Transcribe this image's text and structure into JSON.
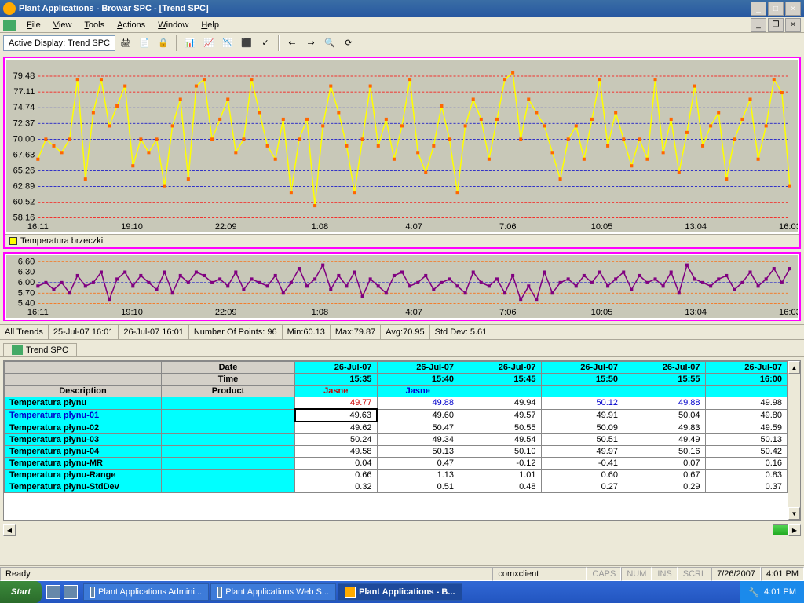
{
  "window": {
    "title": "Plant Applications - Browar SPC - [Trend SPC]"
  },
  "menu": {
    "file": "File",
    "view": "View",
    "tools": "Tools",
    "actions": "Actions",
    "window": "Window",
    "help": "Help"
  },
  "toolbar": {
    "active_display": "Active Display: Trend SPC"
  },
  "chart1": {
    "type": "line",
    "series_color": "#ffff00",
    "marker_color": "#ff6600",
    "grid_red": "#ff0000",
    "grid_blue": "#0000cc",
    "bg": "#c8c8b8",
    "ylim": [
      58.16,
      81
    ],
    "yticks": [
      58.16,
      60.52,
      62.89,
      65.26,
      67.63,
      70.0,
      72.37,
      74.74,
      77.11,
      79.48
    ],
    "xticks": [
      "16:11",
      "19:10",
      "22:09",
      "1:08",
      "4:07",
      "7:06",
      "10:05",
      "13:04",
      "16:03"
    ],
    "legend": "Temperatura brzeczki",
    "values": [
      67,
      70,
      69,
      68,
      70,
      79,
      64,
      74,
      79,
      72,
      75,
      78,
      66,
      70,
      68,
      70,
      63,
      72,
      76,
      64,
      78,
      79,
      70,
      73,
      76,
      68,
      70,
      79,
      74,
      69,
      67,
      73,
      62,
      70,
      73,
      60,
      72,
      78,
      74,
      69,
      62,
      70,
      78,
      69,
      73,
      67,
      72,
      79,
      68,
      65,
      69,
      75,
      70,
      62,
      72,
      76,
      73,
      67,
      73,
      79,
      80,
      70,
      76,
      74,
      72,
      68,
      64,
      70,
      72,
      67,
      73,
      79,
      69,
      74,
      70,
      66,
      70,
      67,
      79,
      68,
      73,
      65,
      71,
      78,
      69,
      72,
      74,
      64,
      70,
      73,
      76,
      67,
      72,
      79,
      77,
      63
    ]
  },
  "chart2": {
    "type": "line",
    "series_color": "#800080",
    "marker2_color": "#ff00ff",
    "grid_red": "#ff6600",
    "grid_blue": "#0000cc",
    "bg": "#c8c8b8",
    "ylim": [
      5.4,
      6.6
    ],
    "yticks": [
      5.4,
      5.7,
      6.0,
      6.3,
      6.6
    ],
    "xticks": [
      "16:11",
      "19:10",
      "22:09",
      "1:08",
      "4:07",
      "7:06",
      "10:05",
      "13:04",
      "16:03"
    ],
    "values": [
      5.9,
      6.0,
      5.8,
      6.0,
      5.7,
      6.2,
      5.9,
      6.0,
      6.3,
      5.5,
      6.1,
      6.3,
      5.9,
      6.2,
      6.0,
      5.8,
      6.3,
      5.7,
      6.2,
      6.0,
      6.3,
      6.2,
      6.0,
      6.1,
      5.9,
      6.3,
      5.8,
      6.1,
      6.0,
      5.9,
      6.2,
      5.7,
      6.0,
      6.4,
      5.9,
      6.1,
      6.5,
      5.8,
      6.2,
      5.9,
      6.3,
      5.6,
      6.1,
      5.9,
      5.7,
      6.2,
      6.3,
      5.9,
      6.0,
      6.2,
      5.8,
      6.0,
      6.1,
      5.9,
      5.7,
      6.3,
      6.0,
      5.9,
      6.1,
      5.7,
      6.2,
      5.5,
      5.9,
      5.5,
      6.3,
      5.7,
      6.0,
      6.1,
      5.9,
      6.2,
      6.0,
      6.3,
      5.9,
      6.1,
      6.3,
      5.8,
      6.2,
      6.0,
      6.1,
      5.9,
      6.3,
      5.7,
      6.5,
      6.1,
      6.0,
      5.9,
      6.1,
      6.2,
      5.8,
      6.0,
      6.3,
      5.9,
      6.1,
      6.4,
      6.0,
      6.4
    ]
  },
  "status": {
    "all_trends": "All Trends",
    "from": "25-Jul-07 16:01",
    "to": "26-Jul-07 16:01",
    "points": "Number Of Points: 96",
    "min": "Min:60.13",
    "max": "Max:79.87",
    "avg": "Avg:70.95",
    "stddev": "Std Dev: 5.61"
  },
  "tab": {
    "label": "Trend SPC"
  },
  "grid": {
    "date_label": "Date",
    "time_label": "Time",
    "desc_label": "Description",
    "prod_label": "Product",
    "dates": [
      "26-Jul-07",
      "26-Jul-07",
      "26-Jul-07",
      "26-Jul-07",
      "26-Jul-07",
      "26-Jul-07"
    ],
    "times": [
      "15:35",
      "15:40",
      "15:45",
      "15:50",
      "15:55",
      "16:00"
    ],
    "products": [
      "Jasne",
      "Jasne",
      "",
      "",
      "",
      ""
    ],
    "rows": [
      {
        "label": "Temperatura płynu",
        "vals": [
          "49.77",
          "49.88",
          "49.94",
          "50.12",
          "49.88",
          "49.98"
        ],
        "styles": [
          "red",
          "blue",
          "",
          "blue",
          "blue",
          ""
        ]
      },
      {
        "label": "Temperatura płynu-01",
        "vals": [
          "49.63",
          "49.60",
          "49.57",
          "49.91",
          "50.04",
          "49.80"
        ],
        "labelblue": true,
        "selcol": 0
      },
      {
        "label": "Temperatura płynu-02",
        "vals": [
          "49.62",
          "50.47",
          "50.55",
          "50.09",
          "49.83",
          "49.59"
        ]
      },
      {
        "label": "Temperatura płynu-03",
        "vals": [
          "50.24",
          "49.34",
          "49.54",
          "50.51",
          "49.49",
          "50.13"
        ]
      },
      {
        "label": "Temperatura płynu-04",
        "vals": [
          "49.58",
          "50.13",
          "50.10",
          "49.97",
          "50.16",
          "50.42"
        ]
      },
      {
        "label": "Temperatura płynu-MR",
        "vals": [
          "0.04",
          "0.47",
          "-0.12",
          "-0.41",
          "0.07",
          "0.16"
        ]
      },
      {
        "label": "Temperatura płynu-Range",
        "vals": [
          "0.66",
          "1.13",
          "1.01",
          "0.60",
          "0.67",
          "0.83"
        ]
      },
      {
        "label": "Temperatura płynu-StdDev",
        "vals": [
          "0.32",
          "0.51",
          "0.48",
          "0.27",
          "0.29",
          "0.37"
        ]
      }
    ]
  },
  "statusbar": {
    "ready": "Ready",
    "server": "comxclient",
    "caps": "CAPS",
    "num": "NUM",
    "ins": "INS",
    "scrl": "SCRL",
    "date": "7/26/2007",
    "time": "4:01 PM"
  },
  "taskbar": {
    "start": "Start",
    "tasks": [
      "Plant Applications Admini...",
      "Plant Applications Web S...",
      "Plant Applications - B..."
    ],
    "clock": "4:01 PM"
  }
}
